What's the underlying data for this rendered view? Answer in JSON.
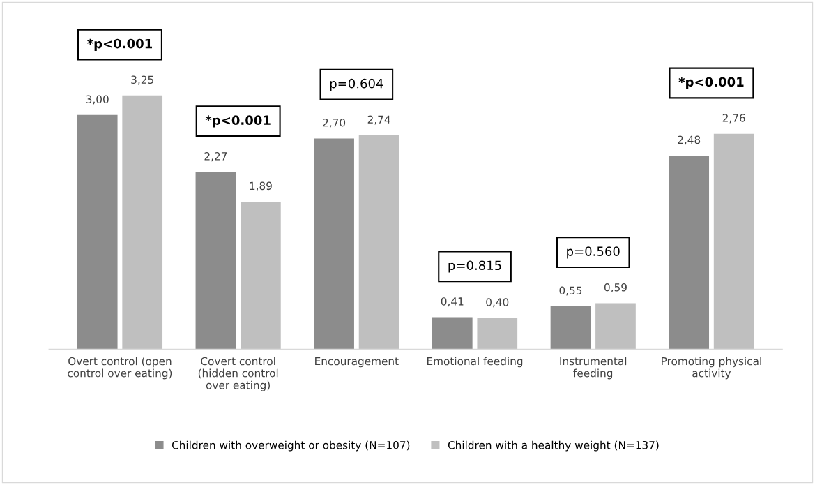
{
  "chart_data": {
    "type": "bar",
    "categories": [
      "Overt control (open\ncontrol over eating)",
      "Covert control\n(hidden control\nover eating)",
      "Encouragement",
      "Emotional feeding",
      "Instrumental\nfeeding",
      "Promoting physical\nactivity"
    ],
    "series": [
      {
        "name": "Children with overweight or obesity (N=107)",
        "color": "#8c8c8c",
        "values": [
          3.0,
          2.27,
          2.7,
          0.41,
          0.55,
          2.48
        ],
        "value_labels": [
          "3,00",
          "2,27",
          "2,70",
          "0,41",
          "0,55",
          "2,48"
        ]
      },
      {
        "name": "Children with a healthy weight (N=137)",
        "color": "#bfbfbf",
        "values": [
          3.25,
          1.89,
          2.74,
          0.4,
          0.59,
          2.76
        ],
        "value_labels": [
          "3,25",
          "1,89",
          "2,74",
          "0,40",
          "0,59",
          "2,76"
        ]
      }
    ],
    "annotations": [
      "*p<0.001",
      "*p<0.001",
      "p=0.604",
      "p=0.815",
      "p=0.560",
      "*p<0.001"
    ],
    "legend": "bottom",
    "grid": false
  }
}
